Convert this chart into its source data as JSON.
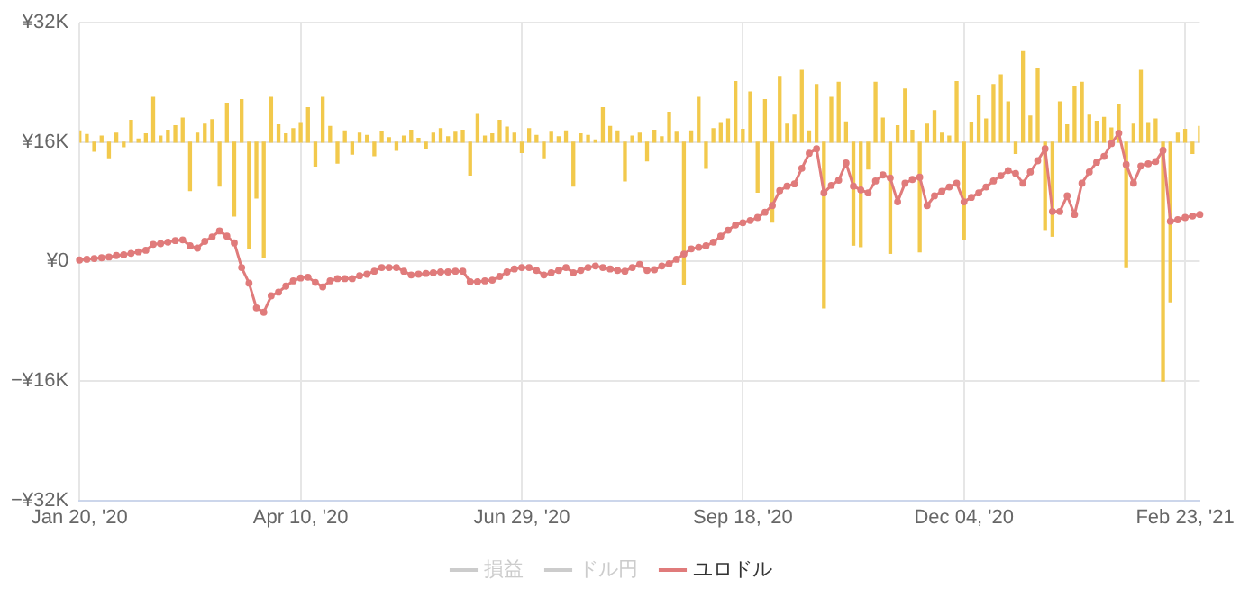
{
  "chart_data": {
    "type": "line",
    "categories": [
      "Jan 20, '20",
      null,
      null,
      null,
      null,
      null,
      null,
      null,
      null,
      null,
      null,
      null,
      null,
      null,
      null,
      null,
      null,
      null,
      null,
      null,
      null,
      null,
      null,
      null,
      null,
      null,
      null,
      null,
      null,
      null,
      "Apr 10, '20",
      null,
      null,
      null,
      null,
      null,
      null,
      null,
      null,
      null,
      null,
      null,
      null,
      null,
      null,
      null,
      null,
      null,
      null,
      null,
      null,
      null,
      null,
      null,
      null,
      null,
      null,
      null,
      null,
      null,
      "Jun 29, '20",
      null,
      null,
      null,
      null,
      null,
      null,
      null,
      null,
      null,
      null,
      null,
      null,
      null,
      null,
      null,
      null,
      null,
      null,
      null,
      null,
      null,
      null,
      null,
      null,
      null,
      null,
      null,
      null,
      null,
      "Sep 18, '20",
      null,
      null,
      null,
      null,
      null,
      null,
      null,
      null,
      null,
      null,
      null,
      null,
      null,
      null,
      null,
      null,
      null,
      null,
      null,
      null,
      null,
      null,
      null,
      null,
      null,
      null,
      null,
      null,
      null,
      "Dec 04, '20",
      null,
      null,
      null,
      null,
      null,
      null,
      null,
      null,
      null,
      null,
      null,
      null,
      null,
      null,
      null,
      null,
      null,
      null,
      null,
      null,
      null,
      null,
      null,
      null,
      null,
      null,
      null,
      null,
      null,
      "Feb 23, '21",
      null,
      null
    ],
    "series": [
      {
        "type": "bar",
        "color": "#f2c94c",
        "base": [
          16,
          16,
          16,
          16,
          16,
          16,
          16,
          16,
          16,
          16,
          16,
          16,
          16,
          16,
          16,
          16,
          16,
          16,
          16,
          16,
          16,
          16,
          16,
          16,
          16,
          16,
          16,
          16,
          16,
          16,
          16,
          16,
          16,
          16,
          16,
          16,
          16,
          16,
          16,
          16,
          16,
          16,
          16,
          16,
          16,
          16,
          16,
          16,
          16,
          16,
          16,
          16,
          16,
          16,
          16,
          16,
          16,
          16,
          16,
          16,
          16,
          16,
          16,
          16,
          16,
          16,
          16,
          16,
          16,
          16,
          16,
          16,
          16,
          16,
          16,
          16,
          16,
          16,
          16,
          16,
          16,
          16,
          16,
          16,
          16,
          16,
          16,
          16,
          16,
          16,
          16,
          16,
          16,
          16,
          16,
          16,
          16,
          16,
          16,
          16,
          16,
          16,
          16,
          16,
          16,
          16,
          16,
          16,
          16,
          16,
          16,
          16,
          16,
          16,
          16,
          16,
          16,
          16,
          16,
          16,
          16,
          16,
          16,
          16,
          16,
          16,
          16,
          16,
          16,
          16,
          16,
          16,
          16,
          16,
          16,
          16,
          16,
          16,
          16,
          16,
          16,
          16,
          16,
          16,
          16,
          16,
          16,
          16,
          16,
          16,
          16,
          16,
          16
        ],
        "values": [
          1.5,
          1,
          -1.2,
          0.8,
          -2.1,
          1.2,
          -0.6,
          2.9,
          0.4,
          1.1,
          6,
          0.8,
          1.6,
          2.2,
          3.2,
          -6.5,
          1.2,
          2.4,
          3,
          -5.9,
          5.2,
          -9.9,
          5.7,
          -14.2,
          -7.5,
          -15.5,
          6,
          2.3,
          1.1,
          1.8,
          2.5,
          4.6,
          -3.2,
          6,
          2.1,
          -2.8,
          1.5,
          -1.6,
          1.2,
          0.9,
          -1.8,
          1.4,
          0.6,
          -1.1,
          0.8,
          1.6,
          0.5,
          -0.9,
          1.2,
          1.8,
          0.7,
          1.3,
          1.6,
          -4.4,
          3.7,
          0.8,
          1.1,
          2.9,
          2,
          1.2,
          -1.4,
          1.8,
          0.9,
          -2.1,
          1.3,
          0.7,
          1.5,
          -5.9,
          1.1,
          0.9,
          0.3,
          4.6,
          2.1,
          1.5,
          -5.2,
          0.8,
          1.2,
          -2.5,
          1.6,
          0.7,
          4,
          1.3,
          -19.1,
          1.5,
          6,
          -3.5,
          1.8,
          2.5,
          3.1,
          8.1,
          1.7,
          6.7,
          -6.7,
          5.7,
          -10.7,
          8.8,
          2.4,
          3.6,
          9.6,
          1.5,
          7.7,
          -22.2,
          6,
          8,
          2.7,
          -13.8,
          -14,
          -3.6,
          8,
          3.2,
          -14.9,
          2.2,
          7.1,
          1.6,
          -14.7,
          2.4,
          4.2,
          1.2,
          0.8,
          8.1,
          -13,
          2.6,
          6.3,
          3.1,
          7.7,
          9,
          5.4,
          -1.5,
          12.1,
          3.5,
          9.9,
          -11.7,
          -12.6,
          5.4,
          2.3,
          7.4,
          8,
          3.6,
          2.8,
          3.3,
          1.9,
          5,
          -16.8,
          2.4,
          9.6,
          2.5,
          3.1,
          -32,
          -21.4,
          1.2,
          1.7,
          -1.5,
          2.1
        ]
      },
      {
        "name": "損益",
        "color": "#cccccc",
        "values": [
          null,
          null,
          null,
          null,
          null,
          null,
          null,
          null,
          null,
          null,
          null,
          null,
          null,
          null,
          null,
          null,
          null,
          null,
          null,
          null,
          null,
          null,
          null,
          null,
          null,
          null,
          null,
          null,
          null,
          null,
          null,
          null,
          null,
          null,
          null,
          null,
          null,
          null,
          null,
          null,
          null,
          null,
          null,
          null,
          null,
          null,
          null,
          null,
          null,
          null,
          null,
          null,
          null,
          null,
          null,
          null,
          null,
          null,
          null,
          null,
          null,
          null,
          null,
          null,
          null,
          null,
          null,
          null,
          null,
          null,
          null,
          null,
          null,
          null,
          null,
          null,
          null,
          null,
          null,
          null,
          null,
          null,
          null,
          null,
          null,
          null,
          null,
          null,
          null,
          null,
          null,
          null,
          null,
          null,
          null,
          null,
          null,
          null,
          null,
          null,
          null,
          null,
          null,
          null,
          null,
          null,
          null,
          null,
          null,
          null,
          null,
          null,
          null,
          null,
          null,
          null,
          null,
          null,
          null,
          null,
          null,
          null,
          null,
          null,
          null,
          null,
          null,
          null,
          null,
          null,
          null,
          null,
          null,
          null,
          null,
          null,
          null,
          null,
          null,
          null,
          null,
          null,
          null,
          null,
          null,
          null,
          null,
          null,
          null,
          null,
          null,
          null,
          null
        ]
      },
      {
        "name": "ドル円",
        "color": "#cccccc",
        "values": [
          null,
          null,
          null,
          null,
          null,
          null,
          null,
          null,
          null,
          null,
          null,
          null,
          null,
          null,
          null,
          null,
          null,
          null,
          null,
          null,
          null,
          null,
          null,
          null,
          null,
          null,
          null,
          null,
          null,
          null,
          null,
          null,
          null,
          null,
          null,
          null,
          null,
          null,
          null,
          null,
          null,
          null,
          null,
          null,
          null,
          null,
          null,
          null,
          null,
          null,
          null,
          null,
          null,
          null,
          null,
          null,
          null,
          null,
          null,
          null,
          null,
          null,
          null,
          null,
          null,
          null,
          null,
          null,
          null,
          null,
          null,
          null,
          null,
          null,
          null,
          null,
          null,
          null,
          null,
          null,
          null,
          null,
          null,
          null,
          null,
          null,
          null,
          null,
          null,
          null,
          null,
          null,
          null,
          null,
          null,
          null,
          null,
          null,
          null,
          null,
          null,
          null,
          null,
          null,
          null,
          null,
          null,
          null,
          null,
          null,
          null,
          null,
          null,
          null,
          null,
          null,
          null,
          null,
          null,
          null,
          null,
          null,
          null,
          null,
          null,
          null,
          null,
          null,
          null,
          null,
          null,
          null,
          null,
          null,
          null,
          null,
          null,
          null,
          null,
          null,
          null,
          null,
          null,
          null,
          null,
          null,
          null,
          null,
          null,
          null,
          null,
          null,
          null
        ]
      },
      {
        "name": "ユロドル",
        "color": "#e07b7b",
        "values": [
          0.2,
          0.3,
          0.4,
          0.5,
          0.6,
          0.8,
          0.9,
          1.1,
          1.3,
          1.5,
          2.3,
          2.4,
          2.6,
          2.8,
          2.9,
          2.1,
          1.8,
          2.7,
          3.3,
          4.1,
          3.4,
          2.5,
          -0.8,
          -2.9,
          -6.2,
          -6.8,
          -4.6,
          -4.1,
          -3.3,
          -2.6,
          -2.2,
          -2.1,
          -2.8,
          -3.4,
          -2.6,
          -2.3,
          -2.3,
          -2.3,
          -1.9,
          -1.7,
          -1.3,
          -0.8,
          -0.8,
          -0.8,
          -1.3,
          -1.8,
          -1.7,
          -1.6,
          -1.5,
          -1.4,
          -1.4,
          -1.3,
          -1.3,
          -2.7,
          -2.7,
          -2.6,
          -2.5,
          -2,
          -1.4,
          -1,
          -0.8,
          -0.8,
          -1.2,
          -1.8,
          -1.5,
          -1.2,
          -0.8,
          -1.5,
          -1.2,
          -0.8,
          -0.6,
          -0.8,
          -1,
          -1.2,
          -1.3,
          -0.8,
          -0.4,
          -1.2,
          -1.1,
          -0.6,
          -0.3,
          0.3,
          1,
          1.7,
          1.9,
          2.1,
          2.6,
          3.4,
          4.2,
          4.9,
          5.2,
          5.5,
          5.9,
          6.6,
          7.5,
          9.5,
          10.1,
          10.4,
          12.5,
          14.5,
          15.1,
          9.2,
          10.2,
          10.9,
          13.2,
          10.1,
          9.6,
          9.2,
          10.8,
          11.6,
          11.2,
          8,
          10.5,
          11,
          11.3,
          7.5,
          8.8,
          9.4,
          10,
          10.5,
          8,
          8.6,
          9.2,
          10,
          10.8,
          11.5,
          12.2,
          11.8,
          10.5,
          12,
          13.5,
          15.1,
          6.7,
          6.7,
          8.8,
          6.3,
          10.5,
          12,
          13.3,
          14.1,
          15.8,
          17.2,
          13,
          10.5,
          12.8,
          13.1,
          13.4,
          14.9,
          5.4,
          5.6,
          5.9,
          6.1,
          6.3
        ]
      }
    ],
    "ylim": [
      -32,
      32
    ],
    "yticks": [
      {
        "value": -32,
        "label": "−¥32K"
      },
      {
        "value": -16,
        "label": "−¥16K"
      },
      {
        "value": 0,
        "label": "¥0"
      },
      {
        "value": 16,
        "label": "¥16K"
      },
      {
        "value": 32,
        "label": "¥32K"
      }
    ],
    "grid": true,
    "legend": "bottom",
    "marker": "circle",
    "line_style": "solid"
  }
}
